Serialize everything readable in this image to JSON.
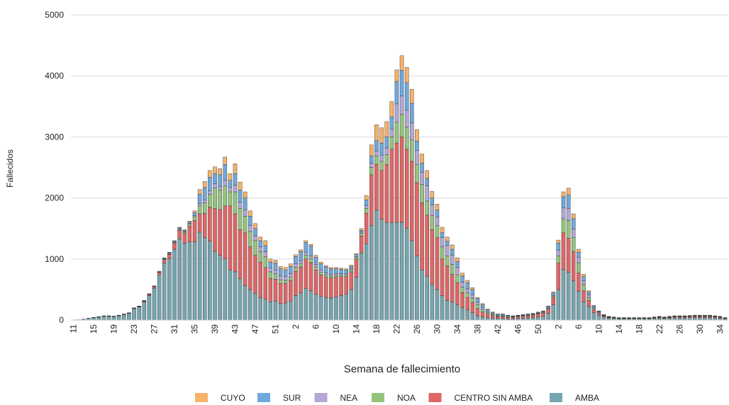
{
  "chart_data": {
    "type": "stacked_bar",
    "y_label": "Fallecidos",
    "x_label": "Semana de fallecimiento",
    "ylim": [
      0,
      5000
    ],
    "yticks": [
      0,
      1000,
      2000,
      3000,
      4000,
      5000
    ],
    "grid": true,
    "legend": "bottom",
    "categories": [
      "11",
      null,
      null,
      null,
      "15",
      null,
      null,
      null,
      "19",
      null,
      null,
      null,
      "23",
      null,
      null,
      null,
      "27",
      null,
      null,
      null,
      "31",
      null,
      null,
      null,
      "35",
      null,
      null,
      null,
      "39",
      null,
      null,
      null,
      "43",
      null,
      null,
      null,
      "47",
      null,
      null,
      null,
      "51",
      null,
      null,
      null,
      "2",
      null,
      null,
      null,
      "6",
      null,
      null,
      null,
      "10",
      null,
      null,
      null,
      "14",
      null,
      null,
      null,
      "18",
      null,
      null,
      null,
      "22",
      null,
      null,
      null,
      "26",
      null,
      null,
      null,
      "30",
      null,
      null,
      null,
      "34",
      null,
      null,
      null,
      "38",
      null,
      null,
      null,
      "42",
      null,
      null,
      null,
      "46",
      null,
      null,
      null,
      "50",
      null,
      null,
      null,
      "2",
      null,
      null,
      null,
      "6",
      null,
      null,
      null,
      "10",
      null,
      null,
      null,
      "14",
      null,
      null,
      null,
      "18",
      null,
      null,
      null,
      "22",
      null,
      null,
      null,
      "26",
      null,
      null,
      null,
      "30",
      null,
      null,
      null,
      "34",
      null
    ],
    "series": [
      {
        "name": "CUYO",
        "color": "#f6b26b",
        "values": [
          0,
          0,
          0,
          0,
          0,
          0,
          0,
          0,
          0,
          0,
          0,
          0,
          0,
          0,
          1,
          1,
          1,
          2,
          4,
          5,
          7,
          9,
          10,
          15,
          30,
          80,
          100,
          110,
          110,
          100,
          120,
          110,
          160,
          130,
          100,
          90,
          80,
          60,
          80,
          50,
          50,
          40,
          40,
          40,
          30,
          30,
          30,
          30,
          30,
          30,
          20,
          20,
          20,
          20,
          20,
          20,
          20,
          30,
          70,
          180,
          260,
          250,
          250,
          250,
          190,
          240,
          250,
          230,
          190,
          150,
          130,
          110,
          100,
          90,
          70,
          70,
          60,
          50,
          40,
          30,
          20,
          20,
          10,
          10,
          5,
          5,
          5,
          5,
          5,
          5,
          5,
          5,
          5,
          5,
          5,
          15,
          50,
          80,
          110,
          80,
          50,
          40,
          20,
          10,
          5,
          5,
          5,
          2,
          2,
          2,
          2,
          2,
          2,
          2,
          2,
          2,
          2,
          2,
          2,
          2,
          2,
          2,
          3,
          3,
          3,
          3,
          3,
          2,
          2,
          2
        ]
      },
      {
        "name": "SUR",
        "color": "#6fa8dc",
        "values": [
          0,
          0,
          1,
          2,
          3,
          3,
          4,
          4,
          4,
          3,
          3,
          4,
          4,
          5,
          7,
          6,
          8,
          10,
          14,
          15,
          15,
          18,
          20,
          23,
          50,
          150,
          200,
          220,
          170,
          190,
          260,
          120,
          190,
          200,
          200,
          150,
          120,
          100,
          100,
          100,
          110,
          120,
          110,
          120,
          120,
          150,
          160,
          160,
          120,
          100,
          100,
          90,
          80,
          70,
          60,
          40,
          30,
          30,
          100,
          120,
          170,
          200,
          180,
          200,
          370,
          420,
          450,
          320,
          150,
          150,
          120,
          110,
          110,
          80,
          70,
          100,
          100,
          100,
          100,
          90,
          60,
          50,
          30,
          20,
          20,
          20,
          15,
          10,
          10,
          10,
          10,
          10,
          10,
          15,
          20,
          40,
          120,
          180,
          220,
          170,
          80,
          70,
          50,
          25,
          15,
          10,
          5,
          5,
          3,
          3,
          3,
          3,
          3,
          3,
          3,
          4,
          5,
          4,
          5,
          6,
          6,
          6,
          6,
          7,
          7,
          7,
          7,
          6,
          5,
          3
        ]
      },
      {
        "name": "NEA",
        "color": "#b4a7d6",
        "values": [
          0,
          0,
          0,
          0,
          1,
          1,
          1,
          1,
          1,
          1,
          1,
          1,
          1,
          2,
          2,
          2,
          2,
          3,
          4,
          5,
          6,
          8,
          10,
          12,
          20,
          40,
          50,
          60,
          70,
          60,
          90,
          70,
          110,
          100,
          100,
          100,
          80,
          80,
          80,
          60,
          60,
          60,
          60,
          60,
          60,
          50,
          50,
          50,
          40,
          40,
          30,
          30,
          30,
          20,
          20,
          20,
          20,
          20,
          40,
          70,
          80,
          100,
          110,
          130,
          300,
          300,
          280,
          280,
          230,
          200,
          250,
          180,
          140,
          150,
          170,
          150,
          120,
          80,
          60,
          50,
          40,
          30,
          20,
          15,
          10,
          10,
          5,
          5,
          5,
          5,
          5,
          5,
          5,
          5,
          10,
          15,
          90,
          180,
          200,
          140,
          90,
          60,
          40,
          15,
          10,
          5,
          5,
          3,
          3,
          3,
          3,
          3,
          3,
          3,
          3,
          4,
          5,
          4,
          5,
          6,
          6,
          6,
          6,
          6,
          6,
          6,
          6,
          6,
          5,
          3
        ]
      },
      {
        "name": "NOA",
        "color": "#93c47d",
        "values": [
          0,
          0,
          0,
          0,
          0,
          1,
          1,
          1,
          1,
          1,
          1,
          1,
          2,
          2,
          3,
          3,
          4,
          5,
          8,
          10,
          12,
          15,
          20,
          30,
          60,
          130,
          170,
          210,
          330,
          320,
          330,
          230,
          360,
          350,
          270,
          250,
          240,
          170,
          180,
          110,
          90,
          60,
          50,
          50,
          60,
          50,
          60,
          60,
          50,
          40,
          40,
          30,
          30,
          30,
          30,
          30,
          30,
          40,
          80,
          120,
          140,
          150,
          160,
          200,
          340,
          370,
          360,
          350,
          300,
          300,
          230,
          230,
          200,
          200,
          160,
          160,
          130,
          90,
          80,
          70,
          60,
          40,
          20,
          15,
          10,
          10,
          10,
          10,
          10,
          10,
          10,
          10,
          10,
          10,
          15,
          20,
          120,
          230,
          290,
          230,
          170,
          100,
          50,
          20,
          10,
          5,
          5,
          5,
          4,
          4,
          4,
          4,
          4,
          4,
          4,
          5,
          6,
          5,
          6,
          7,
          7,
          7,
          7,
          8,
          8,
          8,
          8,
          7,
          6,
          4
        ]
      },
      {
        "name": "CENTRO SIN AMBA",
        "color": "#e06666",
        "values": [
          0,
          0,
          1,
          2,
          3,
          4,
          4,
          4,
          4,
          5,
          5,
          6,
          8,
          9,
          12,
          18,
          25,
          40,
          60,
          75,
          100,
          140,
          160,
          260,
          350,
          300,
          400,
          560,
          700,
          750,
          870,
          1050,
          950,
          800,
          870,
          700,
          620,
          580,
          520,
          380,
          360,
          330,
          320,
          340,
          400,
          420,
          480,
          460,
          400,
          350,
          330,
          330,
          320,
          310,
          290,
          290,
          290,
          280,
          500,
          830,
          750,
          800,
          950,
          1200,
          1300,
          1400,
          1300,
          1300,
          1200,
          1100,
          1000,
          900,
          850,
          600,
          570,
          450,
          360,
          250,
          200,
          170,
          120,
          80,
          60,
          40,
          30,
          30,
          25,
          20,
          25,
          30,
          35,
          40,
          50,
          55,
          70,
          120,
          430,
          600,
          560,
          480,
          300,
          180,
          100,
          50,
          30,
          15,
          10,
          10,
          8,
          8,
          8,
          8,
          8,
          8,
          8,
          10,
          12,
          10,
          12,
          14,
          14,
          14,
          15,
          16,
          16,
          16,
          16,
          14,
          12,
          8
        ]
      },
      {
        "name": "AMBA",
        "color": "#76a5af",
        "values": [
          0,
          5,
          13,
          26,
          38,
          46,
          60,
          60,
          55,
          70,
          90,
          108,
          185,
          212,
          295,
          400,
          520,
          740,
          930,
          1000,
          1160,
          1330,
          1260,
          1280,
          1280,
          1440,
          1350,
          1290,
          1130,
          1060,
          1000,
          820,
          790,
          680,
          560,
          500,
          440,
          370,
          340,
          300,
          310,
          270,
          280,
          310,
          400,
          450,
          520,
          480,
          420,
          390,
          370,
          360,
          380,
          400,
          420,
          500,
          700,
          1100,
          1250,
          1550,
          1800,
          1650,
          1600,
          1600,
          1600,
          1600,
          1500,
          1300,
          1050,
          820,
          720,
          580,
          500,
          400,
          320,
          300,
          250,
          200,
          170,
          120,
          70,
          50,
          40,
          30,
          25,
          25,
          20,
          20,
          25,
          30,
          35,
          40,
          50,
          60,
          110,
          250,
          500,
          830,
          780,
          640,
          470,
          300,
          220,
          120,
          80,
          50,
          30,
          25,
          20,
          20,
          20,
          20,
          20,
          20,
          20,
          25,
          30,
          25,
          30,
          35,
          35,
          35,
          38,
          40,
          40,
          40,
          40,
          35,
          30,
          20
        ]
      }
    ]
  }
}
